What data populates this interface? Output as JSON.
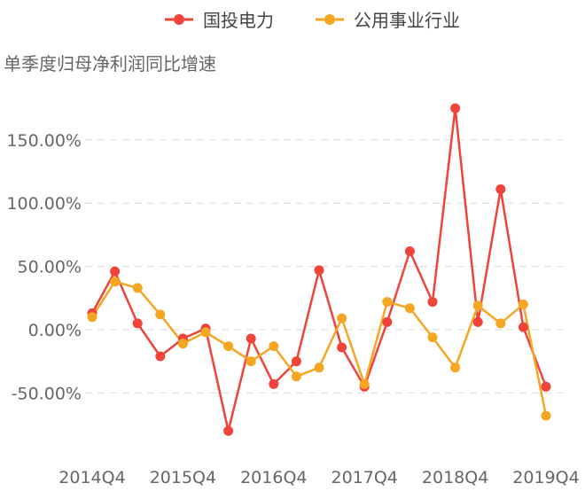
{
  "chart_data": {
    "type": "line",
    "ylabel": "单季度归母净利润同比增速",
    "y_tick_labels": [
      "-50.00%",
      "0.00%",
      "50.00%",
      "100.00%",
      "150.00%"
    ],
    "y_ticks": [
      -50,
      0,
      50,
      100,
      150
    ],
    "ylim": [
      -90,
      190
    ],
    "x_tick_labels": [
      "2014Q4",
      "2015Q4",
      "2016Q4",
      "2017Q4",
      "2018Q4",
      "2019Q4"
    ],
    "x_tick_indices": [
      0,
      4,
      8,
      12,
      16,
      20
    ],
    "grid": true,
    "legend_position": "top-center",
    "series": [
      {
        "name": "国投电力",
        "color": "#f0433a",
        "values": [
          13,
          46,
          5,
          -21,
          -7,
          1,
          -80,
          -7,
          -43,
          -25,
          47,
          -14,
          -45,
          6,
          62,
          22,
          175,
          6,
          111,
          2,
          -45
        ]
      },
      {
        "name": "公用事业行业",
        "color": "#f5a623",
        "values": [
          10,
          38,
          33,
          12,
          -11,
          -2,
          -13,
          -25,
          -13,
          -37,
          -30,
          9,
          -43,
          22,
          17,
          -6,
          -30,
          19,
          5,
          20,
          -68
        ]
      }
    ]
  }
}
